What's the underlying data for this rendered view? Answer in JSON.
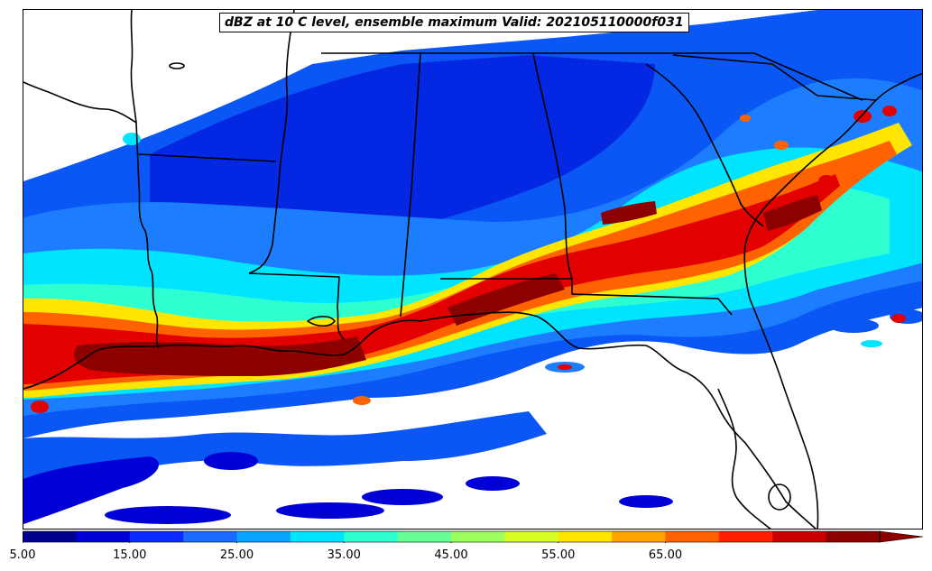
{
  "title": "dBZ at 10 C level, ensemble maximum Valid: 202105110000f031",
  "colorbar": {
    "min": 5,
    "max": 70,
    "step": 5,
    "extend": "max",
    "colors": [
      "#00008f",
      "#0000d6",
      "#0b2aff",
      "#1c6bff",
      "#0aa5ff",
      "#00e4ff",
      "#2dffd0",
      "#66ff96",
      "#9cff5e",
      "#d8ff24",
      "#ffe600",
      "#ffa300",
      "#ff6200",
      "#ff1e00",
      "#c80000",
      "#8c0000"
    ],
    "tick_labels": [
      "5.00",
      "15.00",
      "25.00",
      "35.00",
      "45.00",
      "55.00",
      "65.00"
    ],
    "tick_values": [
      5,
      15,
      25,
      35,
      45,
      55,
      65
    ]
  },
  "map": {
    "fill_colors": {
      "light": "#0a57f5",
      "medium": "#1c7eff",
      "cyan": "#00e4ff",
      "aqua": "#2dffd0",
      "deep": "#0000d6",
      "navy": "#00008f",
      "yellow": "#ffe600",
      "orange": "#ff6200",
      "red": "#e20000",
      "darkred": "#8c0000"
    },
    "boundary_color": "#000000"
  }
}
